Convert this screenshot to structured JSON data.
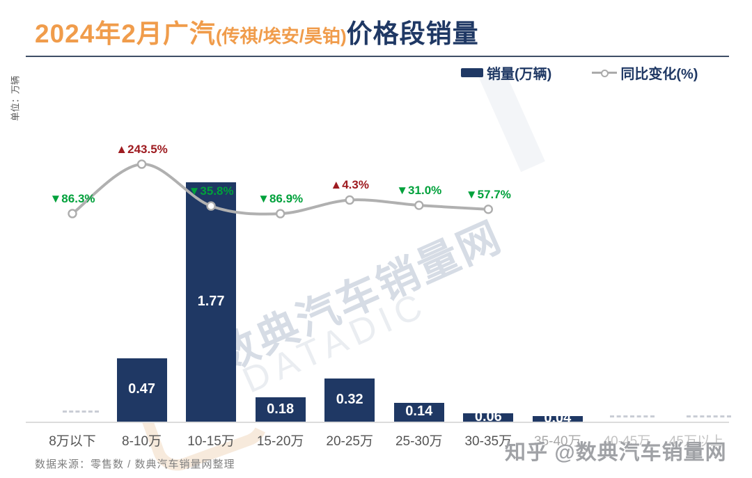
{
  "title": {
    "part1": "2024年2月广汽",
    "part2": "(传祺/埃安/昊铂)",
    "part3": "价格段销量"
  },
  "y_axis_unit": "单位：万辆",
  "legend": {
    "bars_label": "销量(万辆)",
    "line_label": "同比变化(%)"
  },
  "footer": {
    "source": "数据来源：零售数 / 数典汽车销量网整理"
  },
  "watermarks": {
    "center_cn": "数典汽车销量网",
    "center_en": "DATADIC",
    "bottom_right": "知乎 @数典汽车销量网"
  },
  "colors": {
    "title_accent": "#F09C4B",
    "navy": "#1F3864",
    "bar_fill": "#1F3864",
    "line_gray": "#B0B0B0",
    "up_red": "#9E1B20",
    "down_green": "#00A13B",
    "axis_gray": "#DCDCDC"
  },
  "chart_data": {
    "type": "bar",
    "combo": [
      "bar",
      "line"
    ],
    "title": "2024年2月广汽(传祺/埃安/昊铂)价格段销量",
    "ylabel": "单位：万辆",
    "legend_position": "top-right",
    "grid": false,
    "categories": [
      "8万以下",
      "8-10万",
      "10-15万",
      "15-20万",
      "20-25万",
      "25-30万",
      "30-35万",
      "35-40万",
      "40-45万",
      "45万以上"
    ],
    "series": [
      {
        "name": "销量(万辆)",
        "type": "bar",
        "values": [
          0,
          0.47,
          1.77,
          0.18,
          0.32,
          0.14,
          0.06,
          0.04,
          0,
          0
        ],
        "labels": [
          "",
          "0.47",
          "1.77",
          "0.18",
          "0.32",
          "0.14",
          "0.06",
          "0.04",
          "",
          ""
        ]
      },
      {
        "name": "同比变化(%)",
        "type": "line",
        "values": [
          -86.3,
          243.5,
          -35.8,
          -86.9,
          4.3,
          -31.0,
          -57.7
        ],
        "labels": [
          "▼86.3%",
          "▲243.5%",
          "▼35.8%",
          "▼86.9%",
          "▲4.3%",
          "▼31.0%",
          "▼57.7%"
        ]
      }
    ]
  }
}
